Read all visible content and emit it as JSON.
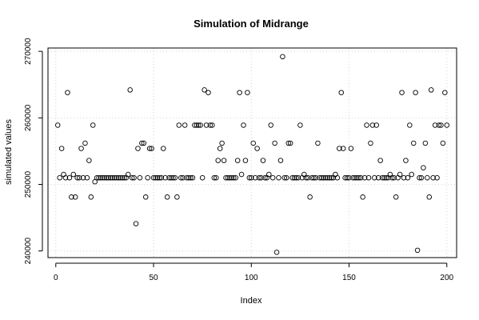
{
  "chart_data": {
    "type": "scatter",
    "title": "Simulation of Midrange",
    "xlabel": "Index",
    "ylabel": "simulated values",
    "xlim": [
      -4,
      205
    ],
    "ylim": [
      239000,
      270500
    ],
    "grid": true,
    "xticks": [
      0,
      50,
      100,
      150,
      200
    ],
    "yticks": [
      240000,
      250000,
      260000,
      270000
    ],
    "xtick_labels": [
      "0",
      "50",
      "100",
      "150",
      "200"
    ],
    "ytick_labels": [
      "240000",
      "250000",
      "260000",
      "270000"
    ],
    "y": [
      258900,
      251000,
      255400,
      251500,
      251000,
      263800,
      251000,
      248100,
      251500,
      248100,
      251000,
      251000,
      255400,
      251000,
      256200,
      251000,
      253600,
      248100,
      258900,
      250400,
      251000,
      251000,
      251000,
      251000,
      251000,
      251000,
      251000,
      251000,
      251000,
      251000,
      251000,
      251000,
      251000,
      251000,
      251000,
      251000,
      251500,
      264200,
      251000,
      251000,
      244100,
      255400,
      251000,
      256200,
      256200,
      248100,
      251000,
      255400,
      255400,
      251000,
      251000,
      251000,
      251000,
      251000,
      255400,
      251000,
      248100,
      251000,
      251000,
      251000,
      251000,
      248100,
      258900,
      251000,
      251000,
      258900,
      251000,
      251000,
      251000,
      251000,
      258900,
      258900,
      258900,
      258900,
      251000,
      264200,
      258900,
      263800,
      258900,
      258900,
      251000,
      251000,
      253600,
      255400,
      256200,
      253600,
      251000,
      251000,
      251000,
      251000,
      251000,
      251000,
      253600,
      263800,
      251500,
      258900,
      253600,
      263800,
      251000,
      251000,
      256200,
      251000,
      255400,
      251000,
      251000,
      253600,
      251000,
      251000,
      251500,
      258900,
      251000,
      256200,
      239800,
      251000,
      253600,
      269200,
      251000,
      251000,
      256200,
      256200,
      251000,
      251000,
      251000,
      251000,
      258900,
      251000,
      251500,
      251000,
      251000,
      248100,
      251000,
      251000,
      251000,
      256200,
      251000,
      251000,
      251000,
      251000,
      251000,
      251000,
      251000,
      251000,
      251500,
      251000,
      255400,
      263800,
      255400,
      251000,
      251000,
      251000,
      255400,
      251000,
      251000,
      251000,
      251000,
      251000,
      248100,
      251000,
      258900,
      251000,
      256200,
      258900,
      251000,
      258900,
      251000,
      253600,
      251000,
      251000,
      251000,
      251000,
      251500,
      251000,
      251000,
      248100,
      251000,
      251500,
      263800,
      251000,
      253600,
      251000,
      258900,
      251500,
      256200,
      263800,
      240100,
      251000,
      251000,
      252500,
      256200,
      251000,
      248100,
      264200,
      251000,
      258900,
      251000,
      258900,
      258900,
      256200,
      263800,
      258900
    ]
  }
}
